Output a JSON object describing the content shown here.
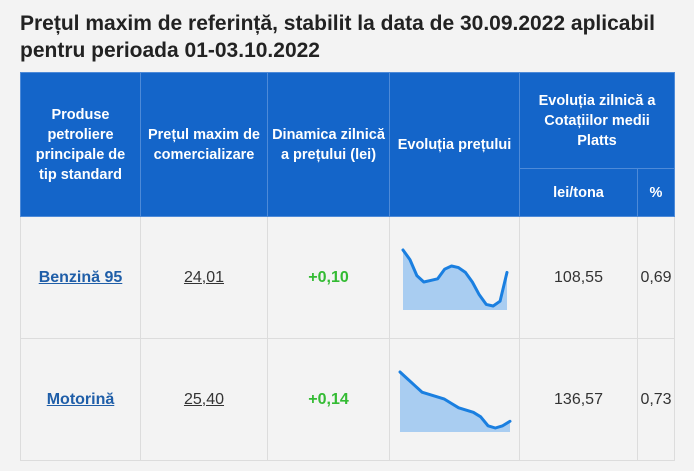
{
  "title": "Prețul maxim de referință, stabilit la data de 30.09.2022 aplicabil pentru perioada 01-03.10.2022",
  "headers": {
    "products": "Produse petroliere principale de tip standard",
    "max_price": "Prețul maxim de comercializare",
    "dynamics": "Dinamica zilnică a prețului (lei)",
    "evolution": "Evoluția prețului",
    "platts": "Evoluția zilnică a Cotațiilor medii Platts",
    "lei_ton": "lei/tona",
    "percent": "%"
  },
  "rows": [
    {
      "product": "Benzină 95",
      "price": "24,01",
      "dynamics": "+0,10",
      "lei_ton": "108,55",
      "percent": "0,69",
      "trend": [
        10,
        9.7,
        9.2,
        9.0,
        9.05,
        9.1,
        9.4,
        9.5,
        9.45,
        9.3,
        9.0,
        8.6,
        8.3,
        8.25,
        8.4,
        9.3
      ]
    },
    {
      "product": "Motorină",
      "price": "25,40",
      "dynamics": "+0,14",
      "lei_ton": "136,57",
      "percent": "0,73",
      "trend": [
        10,
        9.85,
        9.7,
        9.55,
        9.5,
        9.45,
        9.4,
        9.3,
        9.2,
        9.15,
        9.1,
        9.0,
        8.8,
        8.75,
        8.8,
        8.9
      ]
    }
  ],
  "colors": {
    "header_bg": "#1465c9",
    "link": "#1f5ea8",
    "positive": "#33bb33",
    "spark_line": "#1a7fe0",
    "spark_fill": "#a9cdf1"
  }
}
